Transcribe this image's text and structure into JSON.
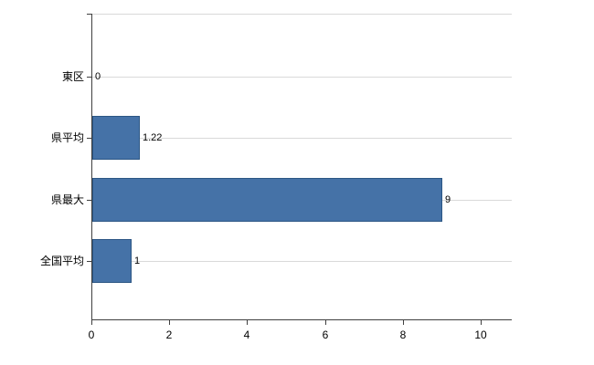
{
  "chart_data": {
    "type": "bar",
    "orientation": "horizontal",
    "title": "",
    "xlabel": "",
    "ylabel": "",
    "categories": [
      "東区",
      "県平均",
      "県最大",
      "全国平均"
    ],
    "values": [
      0,
      1.22,
      9,
      1
    ],
    "value_labels": [
      "0",
      "1.22",
      "9",
      "1"
    ],
    "x_ticks": [
      0,
      2,
      4,
      6,
      8,
      10
    ],
    "x_tick_labels": [
      "0",
      "2",
      "4",
      "6",
      "8",
      "10"
    ],
    "xlim": [
      0,
      10.8
    ],
    "grid": "horizontal lines at each category",
    "legend": "none",
    "colors": {
      "bar_fill": "#4572a7",
      "bar_border": "#2c5684",
      "gridline": "#d9d9d9",
      "axis": "#404040",
      "background": "#ffffff",
      "text": "#000000"
    }
  }
}
